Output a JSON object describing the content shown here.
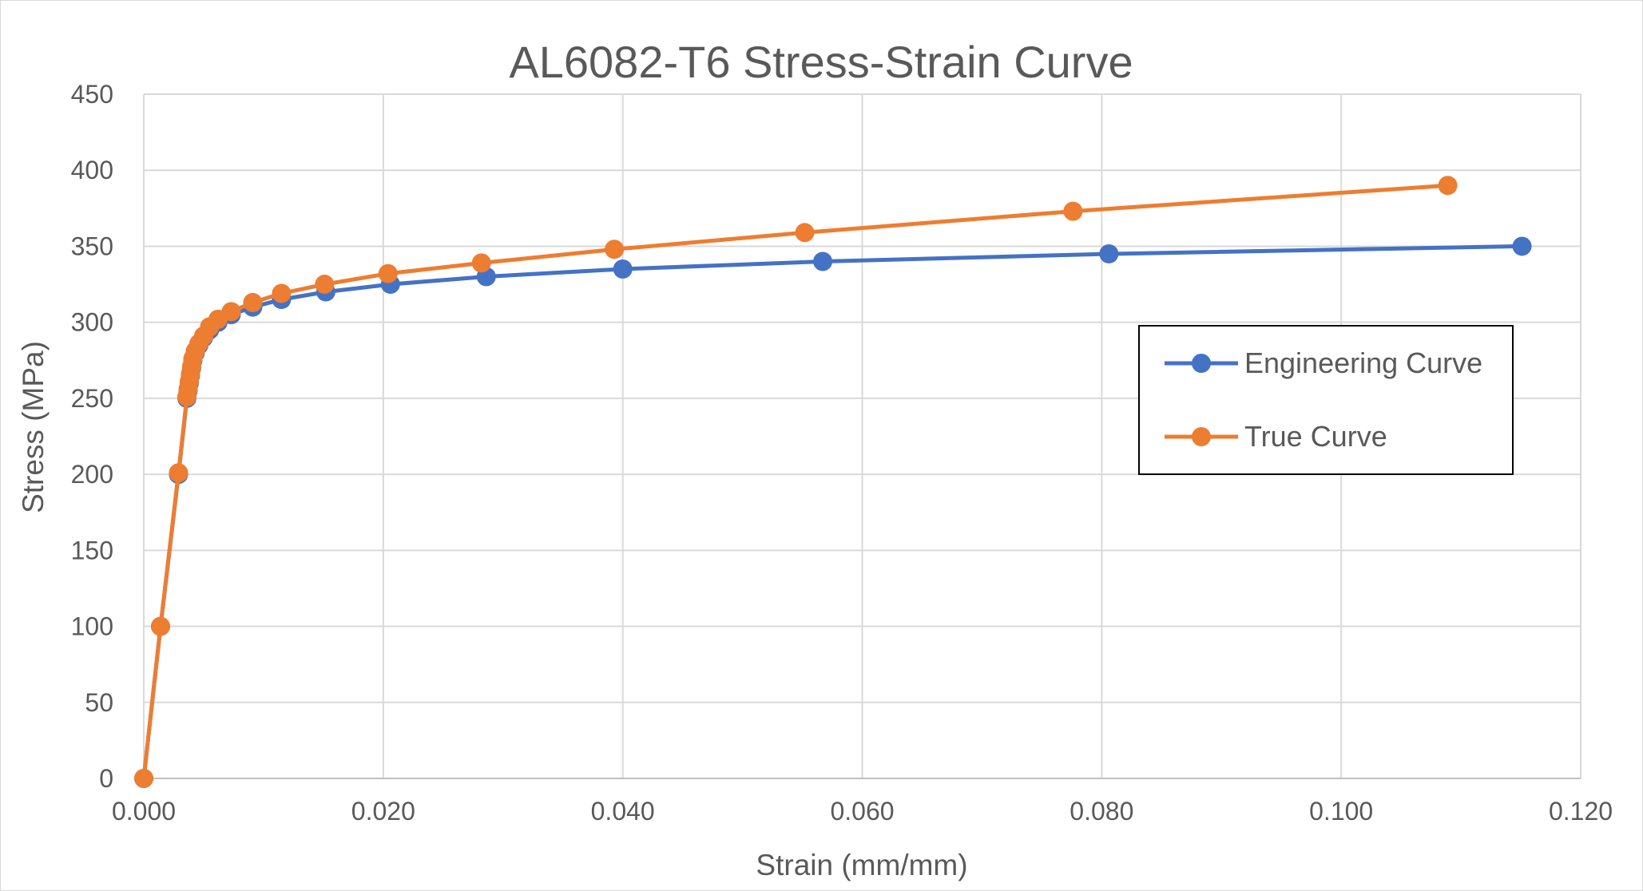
{
  "chart_data": {
    "type": "line",
    "title": "AL6082-T6 Stress-Strain Curve",
    "xlabel": "Strain (mm/mm)",
    "ylabel": "Stress (MPa)",
    "xlim": [
      0,
      0.12
    ],
    "ylim": [
      0,
      450
    ],
    "x_ticks": [
      "0.000",
      "0.020",
      "0.040",
      "0.060",
      "0.080",
      "0.100",
      "0.120"
    ],
    "y_ticks": [
      "0",
      "50",
      "100",
      "150",
      "200",
      "250",
      "300",
      "350",
      "400",
      "450"
    ],
    "x_tick_values": [
      0,
      0.02,
      0.04,
      0.06,
      0.08,
      0.1,
      0.12
    ],
    "y_tick_values": [
      0,
      50,
      100,
      150,
      200,
      250,
      300,
      350,
      400,
      450
    ],
    "grid": true,
    "legend_position": "right",
    "series": [
      {
        "name": "Engineering Curve",
        "color": "#4472C4",
        "x": [
          0.0,
          0.0014,
          0.0029,
          0.0036,
          0.0037,
          0.0038,
          0.0039,
          0.004,
          0.0041,
          0.0043,
          0.0046,
          0.005,
          0.0055,
          0.0062,
          0.0073,
          0.0091,
          0.0115,
          0.0152,
          0.0206,
          0.0286,
          0.04,
          0.0567,
          0.0806,
          0.1151
        ],
        "y": [
          0,
          100,
          200,
          250,
          255,
          260,
          265,
          270,
          275,
          280,
          285,
          290,
          295,
          300,
          305,
          310,
          315,
          320,
          325,
          330,
          335,
          340,
          345,
          350
        ]
      },
      {
        "name": "True Curve",
        "color": "#ED7D31",
        "x": [
          0.0,
          0.0014,
          0.0029,
          0.0036,
          0.0037,
          0.0038,
          0.0039,
          0.004,
          0.0041,
          0.0043,
          0.0046,
          0.005,
          0.0055,
          0.0062,
          0.0073,
          0.0091,
          0.0115,
          0.0151,
          0.0204,
          0.0282,
          0.0393,
          0.0552,
          0.0776,
          0.1089
        ],
        "y": [
          0,
          100,
          201,
          251,
          256,
          261,
          266,
          271,
          276,
          281,
          286,
          291,
          297,
          302,
          307,
          313,
          319,
          325,
          332,
          339,
          348,
          359,
          373,
          390
        ]
      }
    ]
  }
}
